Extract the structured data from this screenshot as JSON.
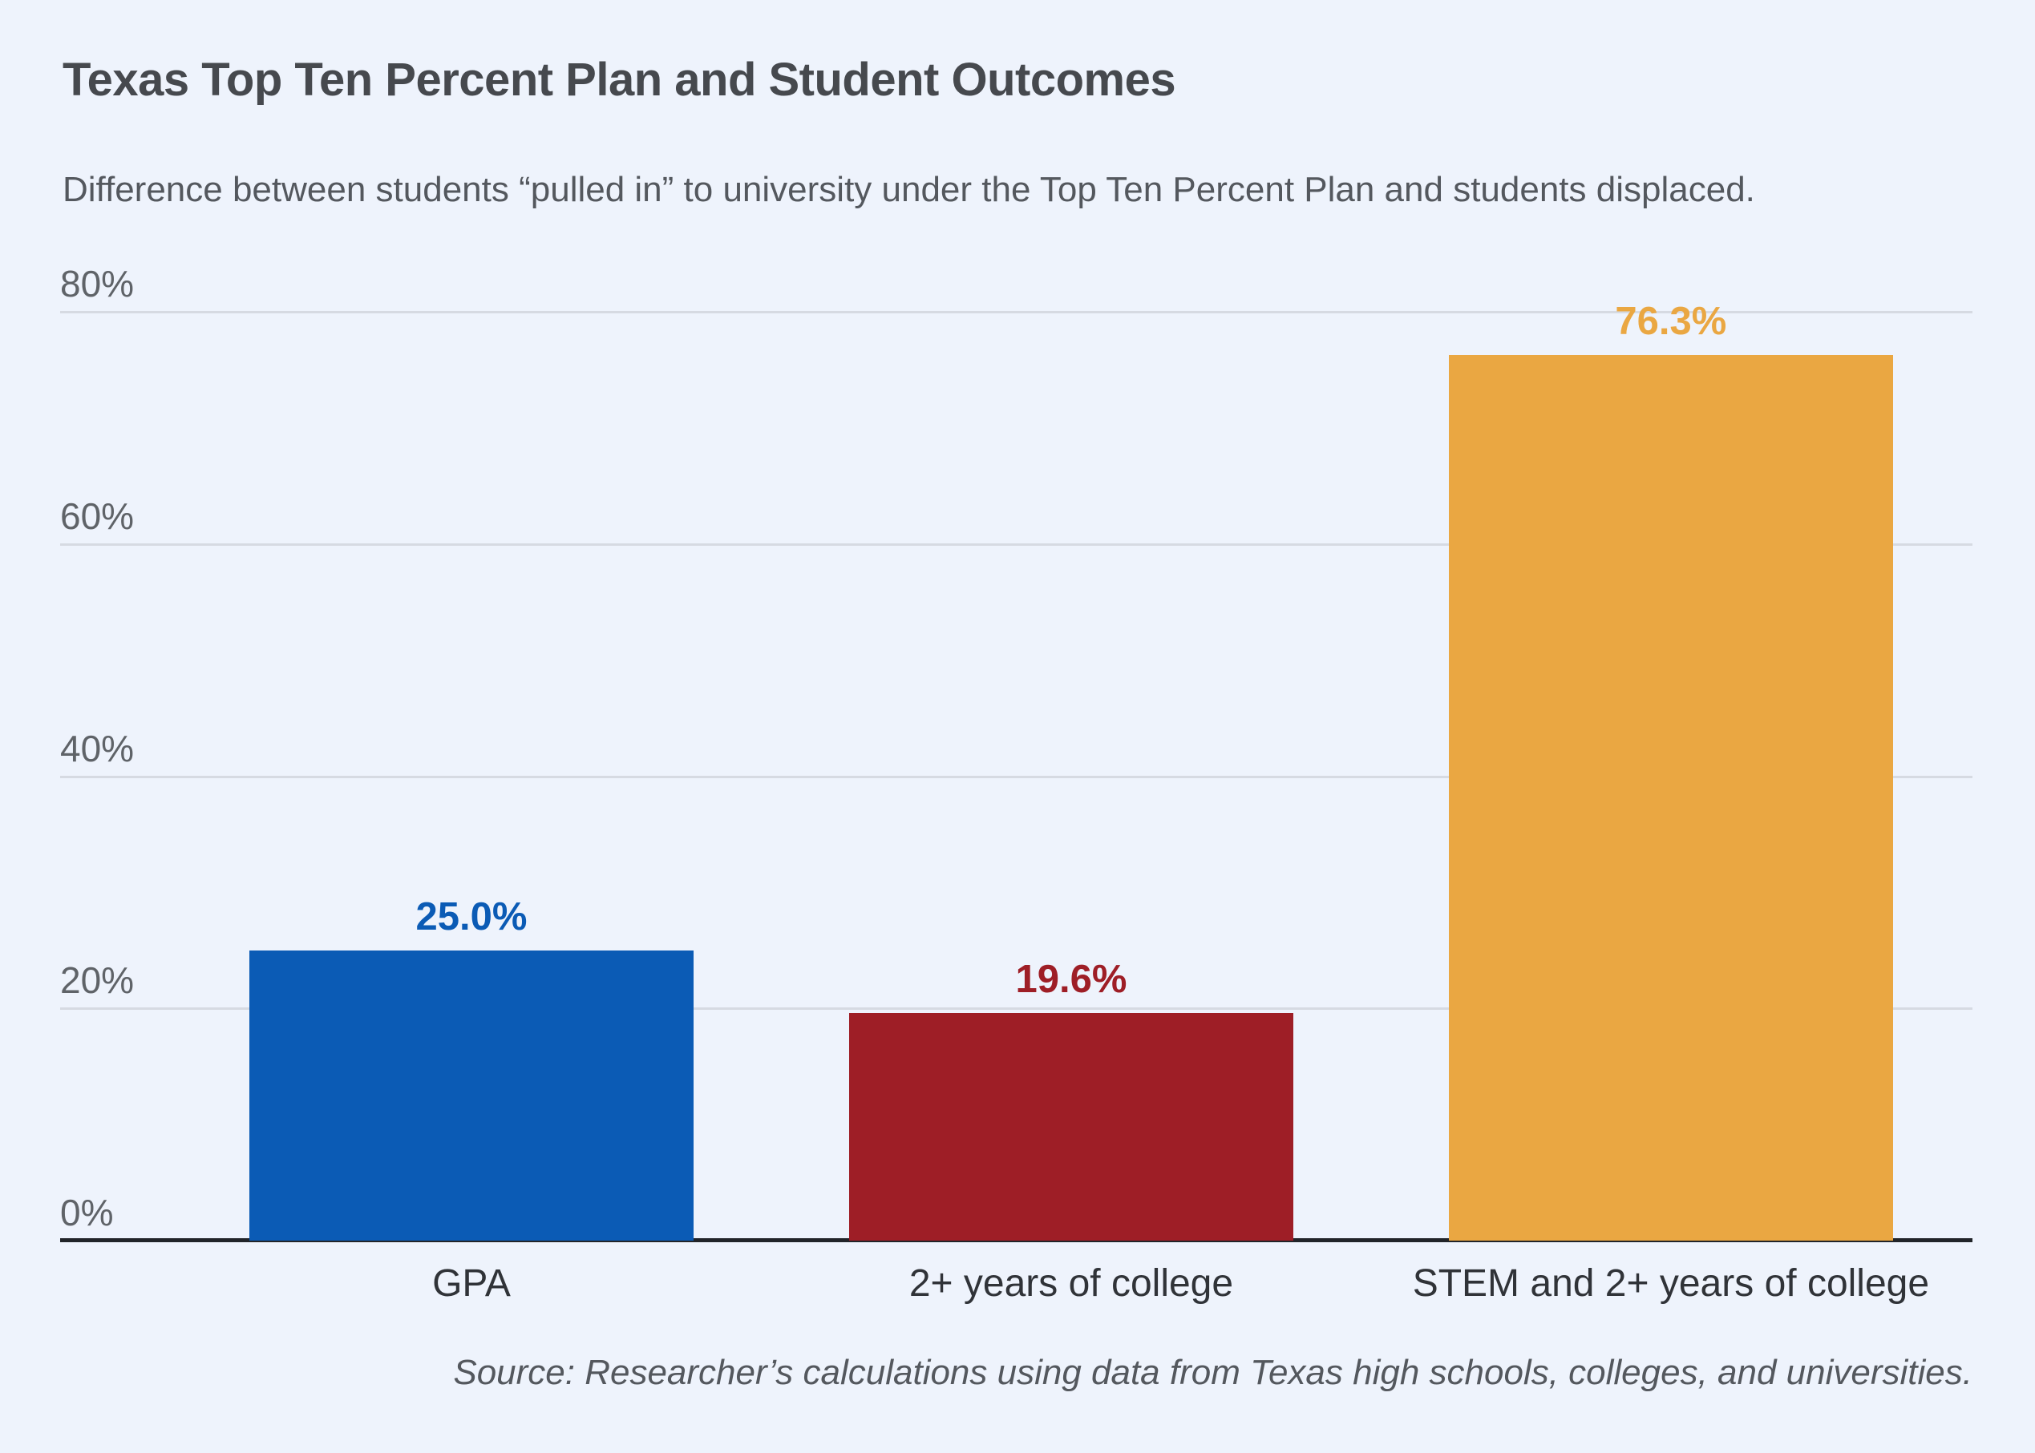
{
  "figure": {
    "title": "Texas Top Ten Percent Plan and Student Outcomes",
    "subtitle": "Difference between students “pulled in” to university under the Top Ten Percent Plan and students displaced.",
    "source": "Source: Researcher’s calculations using data from Texas high schools, colleges, and universities."
  },
  "colors": {
    "background": "#eef3fc",
    "title_text": "#46494e",
    "subtitle_text": "#54585e",
    "tick_text": "#5f6368",
    "gridline": "#d6dae2",
    "axis_line": "#212429",
    "category_text": "#303338",
    "bar_blue": "#0b5bb5",
    "bar_dark_red": "#9e1e26",
    "bar_amber": "#eaa742"
  },
  "chart_data": {
    "type": "bar",
    "title": "Texas Top Ten Percent Plan and Student Outcomes",
    "subtitle": "Difference between students “pulled in” to university under the Top Ten Percent Plan and students displaced.",
    "source": "Source: Researcher’s calculations using data from Texas high schools, colleges, and universities.",
    "categories": [
      "GPA",
      "2+ years of college",
      "STEM and 2+ years of college"
    ],
    "values": [
      25.0,
      19.6,
      76.3
    ],
    "value_labels": [
      "25.0%",
      "19.6%",
      "76.3%"
    ],
    "bar_colors": [
      "#0b5bb5",
      "#9e1e26",
      "#eaa742"
    ],
    "bar_centers_pct": [
      21.51,
      52.87,
      84.23
    ],
    "xlabel": "",
    "ylabel": "",
    "ylim": [
      0,
      80
    ],
    "yticks": [
      {
        "value": 0,
        "label": "0%"
      },
      {
        "value": 20,
        "label": "20%"
      },
      {
        "value": 40,
        "label": "40%"
      },
      {
        "value": 60,
        "label": "60%"
      },
      {
        "value": 80,
        "label": "80%"
      }
    ],
    "grid": "horizontal",
    "legend": "none"
  }
}
